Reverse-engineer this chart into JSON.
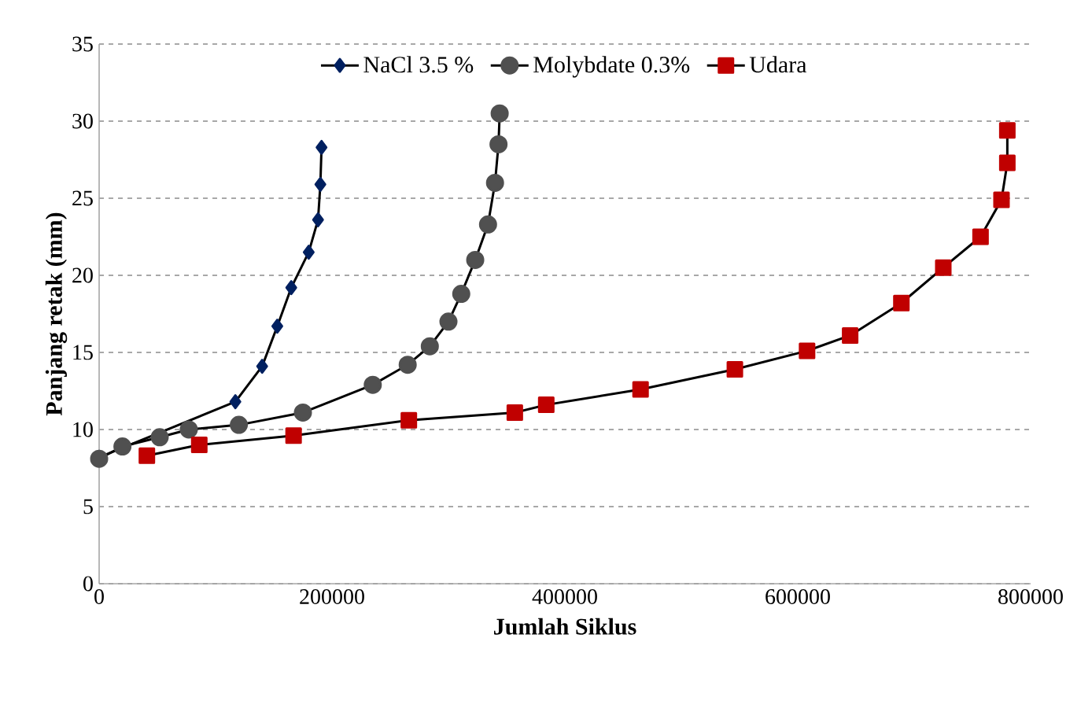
{
  "chart_data": {
    "type": "line",
    "xlabel": "Jumlah Siklus",
    "ylabel": "Panjang retak (mm)",
    "xlim": [
      0,
      800000
    ],
    "xticks": [
      0,
      200000,
      400000,
      600000,
      800000
    ],
    "ylim": [
      0,
      35
    ],
    "yticks": [
      0,
      5,
      10,
      15,
      20,
      25,
      30,
      35
    ],
    "grid": "y",
    "legend": "top",
    "series": [
      {
        "name": "NaCl 3.5 %",
        "color": "#002060",
        "marker": "diamond",
        "x": [
          0,
          40000,
          80000,
          117000,
          140000,
          153000,
          165000,
          180000,
          188000,
          190000,
          191000
        ],
        "values": [
          8.2,
          null,
          null,
          11.8,
          14.1,
          16.7,
          19.2,
          21.5,
          23.6,
          25.9,
          28.3
        ]
      },
      {
        "name": "Molybdate 0.3%",
        "color": "#505050",
        "marker": "circle",
        "x": [
          0,
          20000,
          52000,
          77000,
          120000,
          175000,
          235000,
          265000,
          284000,
          300000,
          311000,
          323000,
          334000,
          340000,
          343000,
          344000
        ],
        "values": [
          8.1,
          8.9,
          9.5,
          10,
          10.3,
          11.1,
          12.9,
          14.2,
          15.4,
          17,
          18.8,
          21,
          23.3,
          26,
          28.5,
          30.5
        ]
      },
      {
        "name": "Udara",
        "color": "#c00000",
        "marker": "square",
        "x": [
          41000,
          86000,
          167000,
          266000,
          357000,
          384000,
          465000,
          546000,
          608000,
          645000,
          689000,
          725000,
          757000,
          775000,
          780000,
          780000
        ],
        "values": [
          8.3,
          9.0,
          9.6,
          10.6,
          11.1,
          11.6,
          12.6,
          13.9,
          15.1,
          16.1,
          18.2,
          20.5,
          22.5,
          24.9,
          27.3,
          29.4
        ]
      }
    ]
  }
}
